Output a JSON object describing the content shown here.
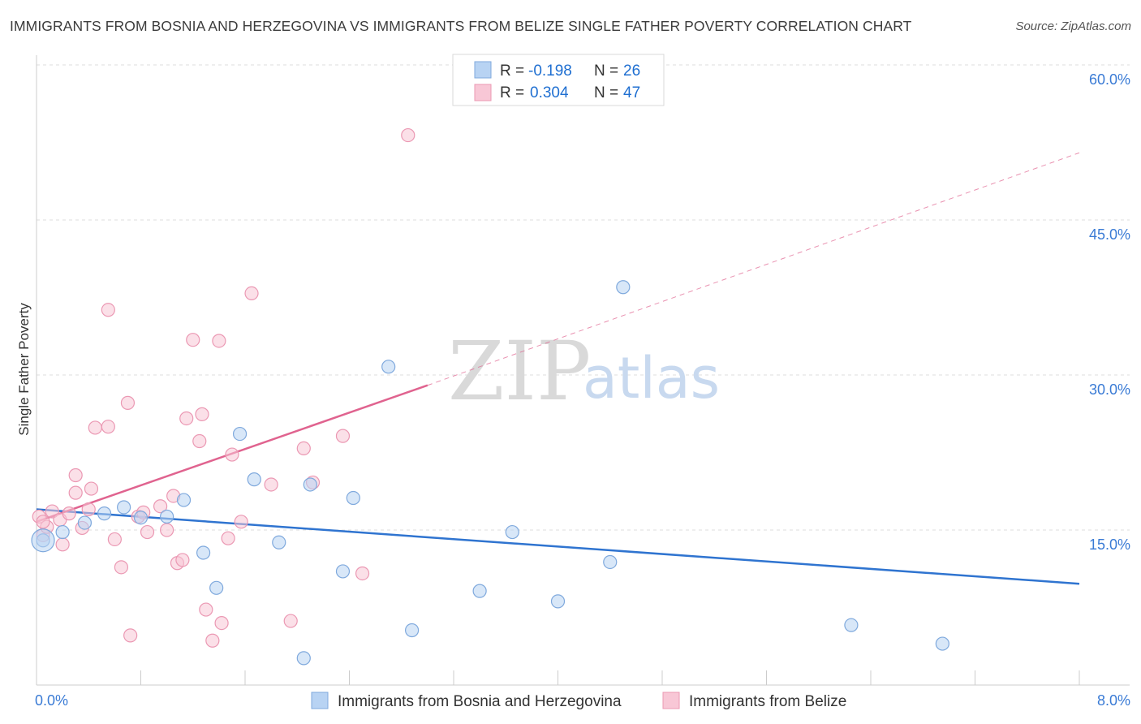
{
  "header": {
    "title": "IMMIGRANTS FROM BOSNIA AND HERZEGOVINA VS IMMIGRANTS FROM BELIZE SINGLE FATHER POVERTY CORRELATION CHART",
    "source": "Source: ZipAtlas.com"
  },
  "watermark": {
    "zip": "ZIP",
    "atlas": "atlas"
  },
  "colors": {
    "blue_fill": "#b8d3f3",
    "blue_stroke": "#7fa9dd",
    "blue_line": "#2f74d0",
    "pink_fill": "#f8c7d6",
    "pink_stroke": "#eb98b3",
    "pink_line": "#e0638f",
    "grid": "#dddddd",
    "tick_text": "#3a7bd5"
  },
  "legend": {
    "r_label": "R =",
    "n_label": "N =",
    "rows": [
      {
        "r": "-0.198",
        "n": "26",
        "series": "blue"
      },
      {
        "r": "0.304",
        "n": "47",
        "series": "pink"
      }
    ]
  },
  "chart_data": {
    "type": "scatter",
    "title": "IMMIGRANTS FROM BOSNIA AND HERZEGOVINA VS IMMIGRANTS FROM BELIZE SINGLE FATHER POVERTY CORRELATION CHART",
    "xlabel": "",
    "ylabel": "Single Father Poverty",
    "xlim": [
      0,
      8
    ],
    "ylim": [
      0,
      60
    ],
    "x_tick_labels": [
      "0.0%",
      "8.0%"
    ],
    "y_ticks": [
      15,
      30,
      45,
      60
    ],
    "y_tick_labels": [
      "15.0%",
      "30.0%",
      "45.0%",
      "60.0%"
    ],
    "grid": true,
    "legend_position": "top-center",
    "series": [
      {
        "name": "Immigrants from Bosnia and Herzegovina",
        "color": "blue",
        "r": -0.198,
        "n": 26,
        "trend": {
          "x": [
            0.0,
            8.0
          ],
          "y": [
            17.0,
            9.8
          ]
        },
        "points": [
          [
            0.05,
            14.0
          ],
          [
            0.2,
            14.8
          ],
          [
            0.37,
            15.7
          ],
          [
            0.52,
            16.6
          ],
          [
            0.67,
            17.2
          ],
          [
            0.8,
            16.2
          ],
          [
            1.0,
            16.3
          ],
          [
            1.13,
            17.9
          ],
          [
            1.28,
            12.8
          ],
          [
            1.38,
            9.4
          ],
          [
            1.56,
            24.3
          ],
          [
            1.67,
            19.9
          ],
          [
            1.86,
            13.8
          ],
          [
            2.1,
            19.4
          ],
          [
            2.35,
            11.0
          ],
          [
            2.43,
            18.1
          ],
          [
            2.7,
            30.8
          ],
          [
            2.88,
            5.3
          ],
          [
            2.05,
            2.6
          ],
          [
            3.4,
            9.1
          ],
          [
            3.65,
            14.8
          ],
          [
            4.0,
            8.1
          ],
          [
            4.4,
            11.9
          ],
          [
            4.5,
            38.5
          ],
          [
            6.25,
            5.8
          ],
          [
            6.95,
            4.0
          ]
        ]
      },
      {
        "name": "Immigrants from Belize",
        "color": "pink",
        "r": 0.304,
        "n": 47,
        "trend": {
          "x": [
            0.0,
            3.0
          ],
          "y": [
            15.8,
            29.0
          ],
          "dashed_extension": {
            "x": [
              3.0,
              8.0
            ],
            "y": [
              29.0,
              51.5
            ]
          }
        },
        "points": [
          [
            0.02,
            16.3
          ],
          [
            0.05,
            14.5
          ],
          [
            0.08,
            15.3
          ],
          [
            0.12,
            16.8
          ],
          [
            0.18,
            16.0
          ],
          [
            0.2,
            13.6
          ],
          [
            0.25,
            16.6
          ],
          [
            0.3,
            18.6
          ],
          [
            0.35,
            15.2
          ],
          [
            0.4,
            17.0
          ],
          [
            0.42,
            19.0
          ],
          [
            0.3,
            20.3
          ],
          [
            0.45,
            24.9
          ],
          [
            0.55,
            25.0
          ],
          [
            0.6,
            14.1
          ],
          [
            0.65,
            11.4
          ],
          [
            0.7,
            27.3
          ],
          [
            0.55,
            36.3
          ],
          [
            0.78,
            16.3
          ],
          [
            0.82,
            16.7
          ],
          [
            0.85,
            14.8
          ],
          [
            0.95,
            17.3
          ],
          [
            1.0,
            15.0
          ],
          [
            1.05,
            18.3
          ],
          [
            1.08,
            11.8
          ],
          [
            1.12,
            12.1
          ],
          [
            1.15,
            25.8
          ],
          [
            1.2,
            33.4
          ],
          [
            1.25,
            23.6
          ],
          [
            1.27,
            26.2
          ],
          [
            1.3,
            7.3
          ],
          [
            1.35,
            4.3
          ],
          [
            1.4,
            33.3
          ],
          [
            1.47,
            14.2
          ],
          [
            1.5,
            22.3
          ],
          [
            1.57,
            15.8
          ],
          [
            1.65,
            37.9
          ],
          [
            1.8,
            19.4
          ],
          [
            1.95,
            6.2
          ],
          [
            2.05,
            22.9
          ],
          [
            2.12,
            19.6
          ],
          [
            2.35,
            24.1
          ],
          [
            2.5,
            10.8
          ],
          [
            0.72,
            4.8
          ],
          [
            1.42,
            6.0
          ],
          [
            2.85,
            53.2
          ],
          [
            0.05,
            15.8
          ]
        ]
      }
    ]
  },
  "bottom_legend": [
    {
      "label": "Immigrants from Bosnia and Herzegovina",
      "series": "blue"
    },
    {
      "label": "Immigrants from Belize",
      "series": "pink"
    }
  ]
}
